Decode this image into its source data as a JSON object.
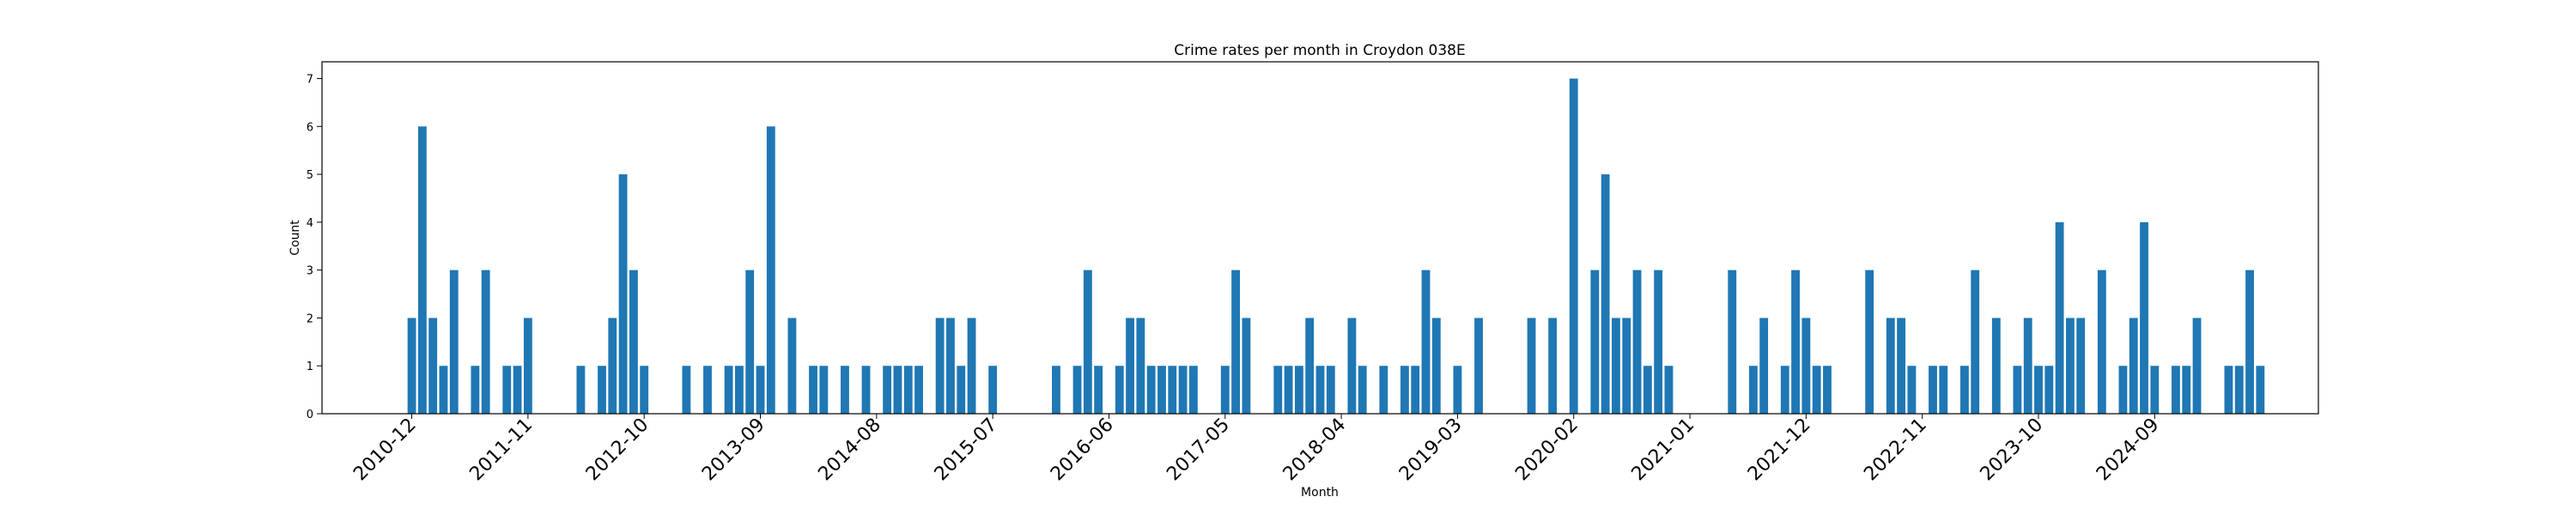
{
  "chart_data": {
    "type": "bar",
    "title": "Crime rates per month in Croydon 038E",
    "xlabel": "Month",
    "ylabel": "Count",
    "ylim": [
      0,
      7.35
    ],
    "xlim": [
      -8.5,
      180.5
    ],
    "yticks": [
      0,
      1,
      2,
      3,
      4,
      5,
      6,
      7
    ],
    "xticks": [
      "2010-12",
      "2011-11",
      "2012-10",
      "2013-09",
      "2014-08",
      "2015-07",
      "2016-06",
      "2017-05",
      "2018-04",
      "2019-03",
      "2020-02",
      "2021-01",
      "2021-12",
      "2022-11",
      "2023-10",
      "2024-09"
    ],
    "bar_color": "#1f77b4",
    "start_month": "2010-12",
    "values": [
      2,
      6,
      2,
      1,
      3,
      0,
      1,
      3,
      0,
      1,
      1,
      2,
      0,
      0,
      0,
      0,
      1,
      0,
      1,
      2,
      5,
      3,
      1,
      0,
      0,
      0,
      1,
      0,
      1,
      0,
      1,
      1,
      3,
      1,
      6,
      0,
      2,
      0,
      1,
      1,
      0,
      1,
      0,
      1,
      0,
      1,
      1,
      1,
      1,
      0,
      2,
      2,
      1,
      2,
      0,
      1,
      0,
      0,
      0,
      0,
      0,
      1,
      0,
      1,
      3,
      1,
      0,
      1,
      2,
      2,
      1,
      1,
      1,
      1,
      1,
      0,
      0,
      1,
      3,
      2,
      0,
      0,
      1,
      1,
      1,
      2,
      1,
      1,
      0,
      2,
      1,
      0,
      1,
      0,
      1,
      1,
      3,
      2,
      0,
      1,
      0,
      2,
      0,
      0,
      0,
      0,
      2,
      0,
      2,
      0,
      7,
      0,
      3,
      5,
      2,
      2,
      3,
      1,
      3,
      1,
      0,
      0,
      0,
      0,
      0,
      3,
      0,
      1,
      2,
      0,
      1,
      3,
      2,
      1,
      1,
      0,
      0,
      0,
      3,
      0,
      2,
      2,
      1,
      0,
      1,
      1,
      0,
      1,
      3,
      0,
      2,
      0,
      1,
      2,
      1,
      1,
      4,
      2,
      2,
      0,
      3,
      0,
      1,
      2,
      4,
      1,
      0,
      1,
      1,
      2,
      0,
      0,
      1,
      1,
      3,
      1
    ]
  }
}
